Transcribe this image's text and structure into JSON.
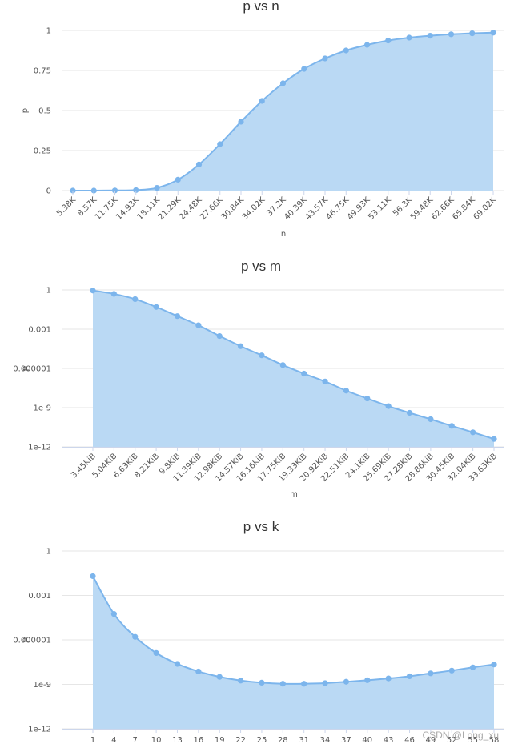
{
  "colors": {
    "line": "#7cb5ec",
    "area": "#bad9f4",
    "grid": "#e6e6e6",
    "text": "#555555"
  },
  "watermark": "CSDN @Long_xu",
  "chart_data": [
    {
      "type": "area",
      "title": "p vs n",
      "xlabel": "n",
      "ylabel": "p",
      "yscale": "linear",
      "ylim": [
        0,
        1
      ],
      "yticks": [
        "0",
        "0.25",
        "0.5",
        "0.75",
        "1"
      ],
      "categories": [
        "5.38K",
        "8.57K",
        "11.75K",
        "14.93K",
        "18.11K",
        "21.29K",
        "24.48K",
        "27.66K",
        "30.84K",
        "34.02K",
        "37.2K",
        "40.39K",
        "43.57K",
        "46.75K",
        "49.93K",
        "53.11K",
        "56.3K",
        "59.48K",
        "62.66K",
        "65.84K",
        "69.02K"
      ],
      "values": [
        0.0,
        0.0,
        0.001,
        0.003,
        0.017,
        0.068,
        0.163,
        0.29,
        0.43,
        0.56,
        0.67,
        0.76,
        0.825,
        0.875,
        0.91,
        0.937,
        0.955,
        0.967,
        0.976,
        0.982,
        0.986
      ],
      "grid": true,
      "legend": "none"
    },
    {
      "type": "area",
      "title": "p vs m",
      "xlabel": "m",
      "ylabel": "p",
      "yscale": "log",
      "ylim": [
        1e-12,
        1
      ],
      "yticks": [
        "1e-12",
        "1e-9",
        "0.000001",
        "0.001",
        "1"
      ],
      "categories": [
        "3.45KiB",
        "5.04KiB",
        "6.63KiB",
        "8.21KiB",
        "9.8KiB",
        "11.39KiB",
        "12.98KiB",
        "14.57KiB",
        "16.16KiB",
        "17.75KiB",
        "19.33KiB",
        "20.92KiB",
        "22.51KiB",
        "24.1KiB",
        "25.69KiB",
        "27.28KiB",
        "28.86KiB",
        "30.45KiB",
        "32.04KiB",
        "33.63KiB"
      ],
      "values": [
        0.9,
        0.5,
        0.2,
        0.05,
        0.01,
        0.002,
        0.0003,
        5e-05,
        1e-05,
        1.8e-06,
        4e-07,
        1e-07,
        2e-08,
        5e-09,
        1.3e-09,
        4e-10,
        1.3e-10,
        4e-11,
        1.3e-11,
        4e-12
      ],
      "grid": true,
      "legend": "none"
    },
    {
      "type": "area",
      "title": "p vs k",
      "xlabel": "",
      "ylabel": "p",
      "yscale": "log",
      "ylim": [
        1e-12,
        1
      ],
      "yticks": [
        "1e-12",
        "1e-9",
        "0.000001",
        "0.001",
        "1"
      ],
      "categories": [
        "1",
        "4",
        "7",
        "10",
        "13",
        "16",
        "19",
        "22",
        "25",
        "28",
        "31",
        "34",
        "37",
        "40",
        "43",
        "46",
        "49",
        "52",
        "55",
        "58"
      ],
      "values": [
        0.02,
        5.6e-05,
        1.6e-06,
        1.3e-07,
        2.4e-08,
        7.4e-09,
        3.2e-09,
        1.8e-09,
        1.3e-09,
        1.1e-09,
        1.1e-09,
        1.2e-09,
        1.5e-09,
        1.9e-09,
        2.5e-09,
        3.5e-09,
        5.5e-09,
        8.5e-09,
        1.4e-08,
        2.2e-08
      ],
      "grid": true,
      "legend": "none"
    }
  ]
}
